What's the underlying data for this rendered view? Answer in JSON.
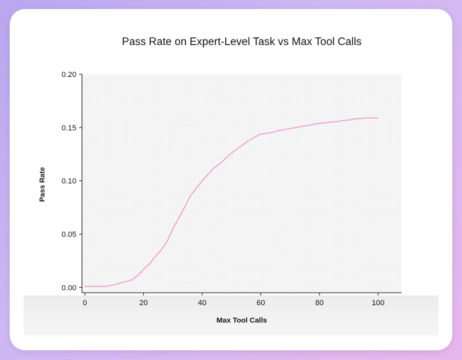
{
  "chart_data": {
    "type": "line",
    "title": "Pass Rate on Expert-Level Task vs Max Tool Calls",
    "xlabel": "Max Tool Calls",
    "ylabel": "Pass Rate",
    "xlim": [
      -1,
      108
    ],
    "ylim": [
      -0.005,
      0.2
    ],
    "x_ticks": [
      "0",
      "20",
      "40",
      "60",
      "80",
      "100"
    ],
    "y_ticks": [
      "0.00",
      "0.05",
      "0.10",
      "0.15",
      "0.20"
    ],
    "grid": false,
    "legend": "none",
    "colors": {
      "line": "#efa3cf",
      "plot_bg": "#f6f6f6",
      "axis": "#222222"
    },
    "series": [
      {
        "x": [
          0,
          4,
          6,
          8,
          10,
          12,
          14,
          16,
          18,
          20,
          22,
          24,
          26,
          28,
          30,
          32,
          34,
          36,
          38,
          40,
          42,
          44,
          46,
          48,
          50,
          52,
          54,
          56,
          58,
          60,
          62,
          64,
          66,
          68,
          70,
          72,
          74,
          76,
          78,
          80,
          82,
          84,
          86,
          88,
          90,
          92,
          94,
          96,
          98,
          100
        ],
        "y": [
          0.001,
          0.001,
          0.001,
          0.0013,
          0.0025,
          0.004,
          0.0055,
          0.007,
          0.011,
          0.017,
          0.022,
          0.029,
          0.035,
          0.043,
          0.055,
          0.065,
          0.075,
          0.086,
          0.093,
          0.1,
          0.106,
          0.112,
          0.116,
          0.121,
          0.126,
          0.13,
          0.134,
          0.138,
          0.141,
          0.144,
          0.1445,
          0.1455,
          0.147,
          0.148,
          0.149,
          0.15,
          0.151,
          0.152,
          0.153,
          0.154,
          0.1545,
          0.155,
          0.1555,
          0.1565,
          0.157,
          0.158,
          0.1585,
          0.159,
          0.159,
          0.159
        ]
      }
    ]
  }
}
